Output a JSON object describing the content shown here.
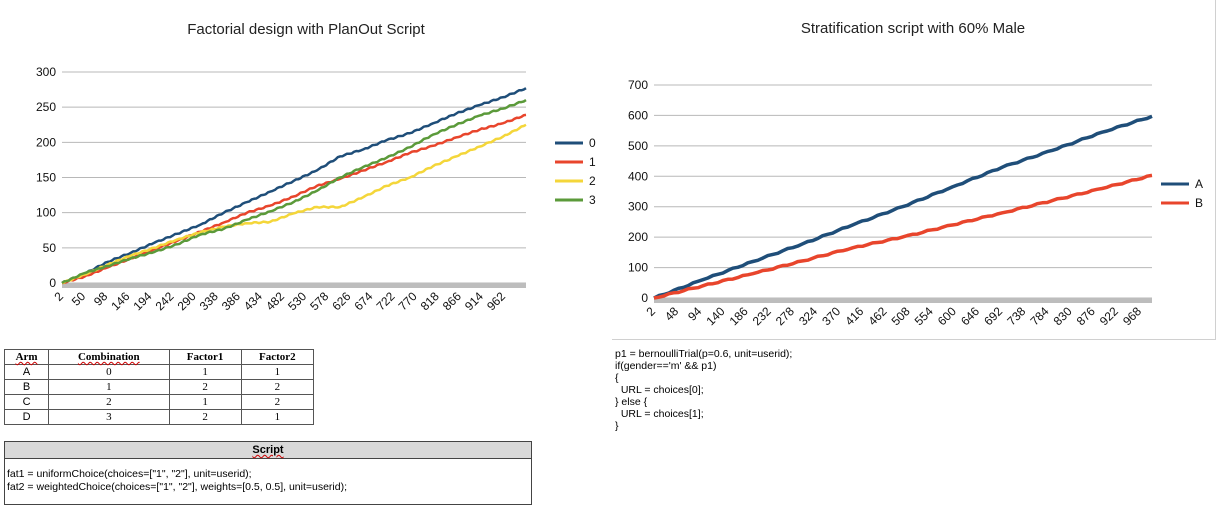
{
  "chart_data": [
    {
      "type": "line",
      "title": "Factorial design with PlanOut Script",
      "xlabel": "",
      "ylabel": "",
      "ylim": [
        0,
        300
      ],
      "xlim": [
        2,
        1000
      ],
      "y_ticks": [
        "0",
        "50",
        "100",
        "150",
        "200",
        "250",
        "300"
      ],
      "x_tick_labels": [
        "2",
        "50",
        "98",
        "146",
        "194",
        "242",
        "290",
        "338",
        "386",
        "434",
        "482",
        "530",
        "578",
        "626",
        "674",
        "722",
        "770",
        "818",
        "866",
        "914",
        "962"
      ],
      "legend_position": "right",
      "grid": true,
      "series": [
        {
          "name": "0",
          "color": "#1f4e79",
          "x": [
            2,
            50,
            100,
            150,
            200,
            250,
            300,
            350,
            400,
            450,
            500,
            550,
            600,
            650,
            700,
            750,
            800,
            850,
            900,
            950,
            1000
          ],
          "values": [
            0,
            13,
            30,
            43,
            57,
            70,
            83,
            100,
            115,
            130,
            145,
            160,
            180,
            190,
            203,
            213,
            227,
            241,
            253,
            264,
            277
          ]
        },
        {
          "name": "1",
          "color": "#e8452c",
          "x": [
            2,
            50,
            100,
            150,
            200,
            250,
            300,
            350,
            400,
            450,
            500,
            550,
            600,
            650,
            700,
            750,
            800,
            850,
            900,
            950,
            1000
          ],
          "values": [
            0,
            9,
            22,
            35,
            48,
            60,
            73,
            86,
            100,
            110,
            123,
            138,
            148,
            160,
            172,
            185,
            195,
            207,
            218,
            227,
            239
          ]
        },
        {
          "name": "2",
          "color": "#f4d63a",
          "x": [
            2,
            50,
            100,
            150,
            200,
            250,
            300,
            350,
            400,
            450,
            500,
            550,
            600,
            650,
            700,
            750,
            800,
            850,
            900,
            950,
            1000
          ],
          "values": [
            0,
            12,
            26,
            39,
            50,
            62,
            72,
            80,
            85,
            87,
            99,
            108,
            108,
            122,
            138,
            150,
            166,
            180,
            194,
            208,
            225
          ]
        },
        {
          "name": "3",
          "color": "#5b9a3a",
          "x": [
            2,
            50,
            100,
            150,
            200,
            250,
            300,
            350,
            400,
            450,
            500,
            550,
            600,
            650,
            700,
            750,
            800,
            850,
            900,
            950,
            1000
          ],
          "values": [
            0,
            14,
            24,
            35,
            44,
            55,
            69,
            77,
            90,
            102,
            115,
            131,
            150,
            165,
            178,
            193,
            211,
            225,
            238,
            248,
            260
          ]
        }
      ]
    },
    {
      "type": "line",
      "title": "Stratification script with 60% Male",
      "xlabel": "",
      "ylabel": "",
      "ylim": [
        0,
        700
      ],
      "xlim": [
        2,
        1000
      ],
      "y_ticks": [
        "0",
        "100",
        "200",
        "300",
        "400",
        "500",
        "600",
        "700"
      ],
      "x_tick_labels": [
        "2",
        "48",
        "94",
        "140",
        "186",
        "232",
        "278",
        "324",
        "370",
        "416",
        "462",
        "508",
        "554",
        "600",
        "646",
        "692",
        "738",
        "784",
        "830",
        "876",
        "922",
        "968"
      ],
      "legend_position": "right",
      "grid": true,
      "series": [
        {
          "name": "A",
          "color": "#1f4e79",
          "x": [
            2,
            100,
            200,
            300,
            400,
            500,
            600,
            700,
            800,
            900,
            1000
          ],
          "values": [
            0,
            60,
            120,
            178,
            240,
            300,
            365,
            430,
            485,
            545,
            597
          ]
        },
        {
          "name": "B",
          "color": "#e8452c",
          "x": [
            2,
            100,
            200,
            300,
            400,
            500,
            600,
            700,
            800,
            900,
            1000
          ],
          "values": [
            0,
            40,
            80,
            122,
            165,
            200,
            240,
            280,
            320,
            360,
            403
          ]
        }
      ]
    }
  ],
  "arm_table": {
    "headers": [
      "Arm",
      "Combination",
      "Factor1",
      "Factor2"
    ],
    "rows": [
      [
        "A",
        "0",
        "1",
        "1"
      ],
      [
        "B",
        "1",
        "2",
        "2"
      ],
      [
        "C",
        "2",
        "1",
        "2"
      ],
      [
        "D",
        "3",
        "2",
        "1"
      ]
    ]
  },
  "script_box": {
    "header": "Script",
    "lines": [
      "fat1 = uniformChoice(choices=[\"1\", \"2\"], unit=userid);",
      "fat2 = weightedChoice(choices=[\"1\", \"2\"], weights=[0.5, 0.5], unit=userid);"
    ]
  },
  "right_code": {
    "lines": [
      "p1 = bernoulliTrial(p=0.6, unit=userid);",
      "if(gender=='m' && p1)",
      "{",
      "  URL = choices[0];",
      "} else {",
      "  URL = choices[1];",
      "}"
    ]
  }
}
